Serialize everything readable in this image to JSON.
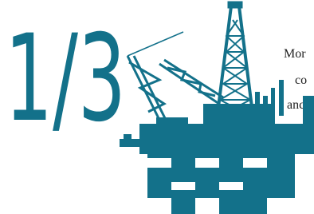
{
  "headline": {
    "fraction": "1/3"
  },
  "body": {
    "lines": [
      "Mor",
      "co",
      "anc"
    ]
  }
}
